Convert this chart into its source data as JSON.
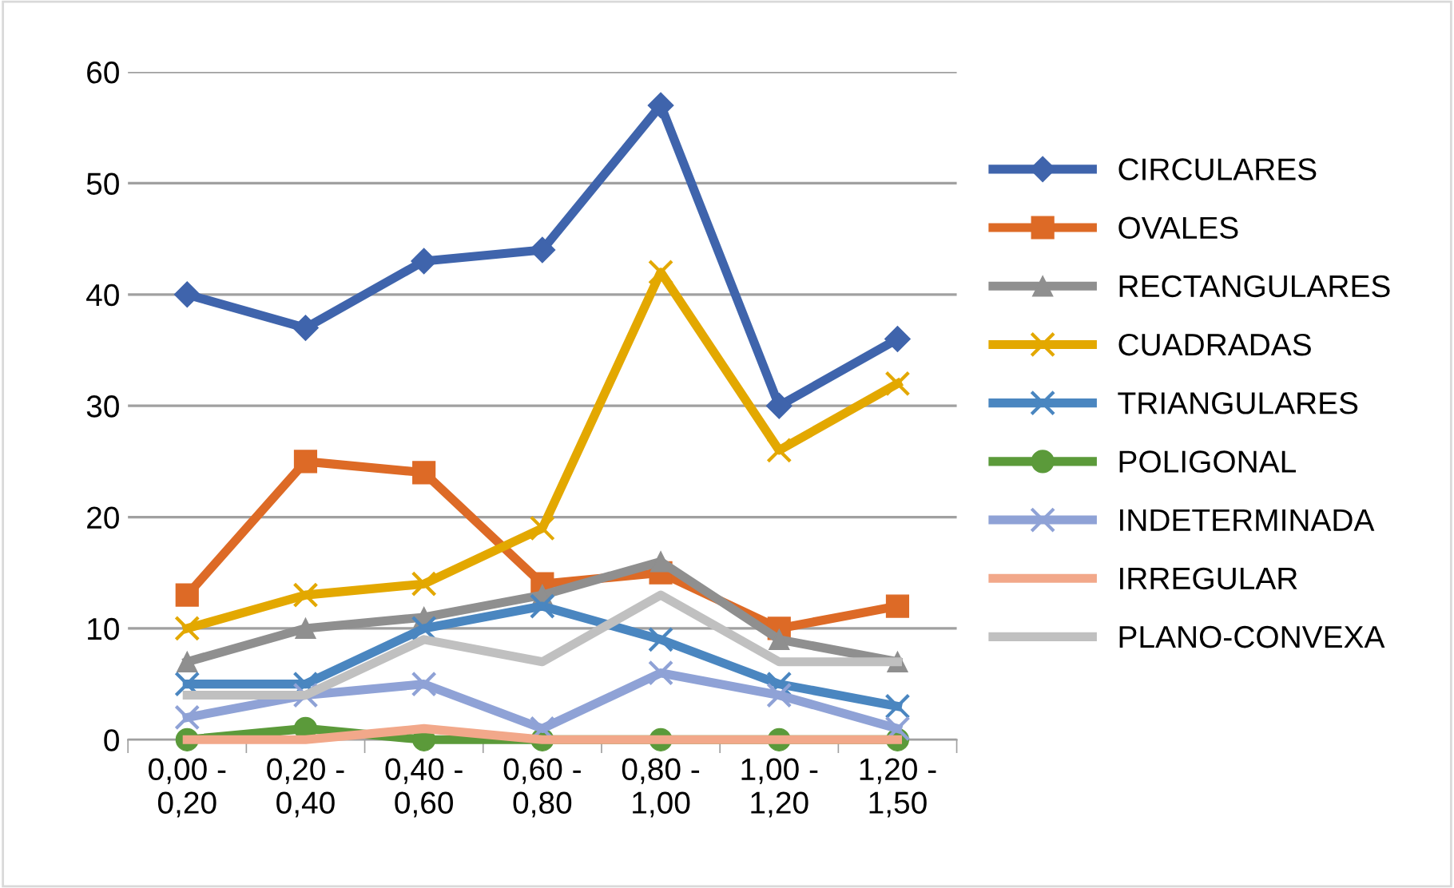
{
  "chart_data": {
    "type": "line",
    "categories": [
      "0,00 -\n0,20",
      "0,20 -\n0,40",
      "0,40 -\n0,60",
      "0,60 -\n0,80",
      "0,80 -\n1,00",
      "1,00 -\n1,20",
      "1,20 -\n1,50"
    ],
    "series": [
      {
        "name": "CIRCULARES",
        "color": "#3f64ac",
        "marker": "diamond",
        "values": [
          40,
          37,
          43,
          44,
          57,
          30,
          36
        ]
      },
      {
        "name": "OVALES",
        "color": "#dd6a26",
        "marker": "square",
        "values": [
          13,
          25,
          24,
          14,
          15,
          10,
          12
        ]
      },
      {
        "name": "RECTANGULARES",
        "color": "#8f8f8f",
        "marker": "triangle",
        "values": [
          7,
          10,
          11,
          13,
          16,
          9,
          7
        ]
      },
      {
        "name": "CUADRADAS",
        "color": "#e3a800",
        "marker": "cross",
        "values": [
          10,
          13,
          14,
          19,
          42,
          26,
          32
        ]
      },
      {
        "name": "TRIANGULARES",
        "color": "#4a86c0",
        "marker": "cross",
        "values": [
          5,
          5,
          10,
          12,
          9,
          5,
          3
        ]
      },
      {
        "name": "POLIGONAL",
        "color": "#5b9a3a",
        "marker": "circle",
        "values": [
          0,
          1,
          0,
          0,
          0,
          0,
          0
        ]
      },
      {
        "name": "INDETERMINADA",
        "color": "#8fa2d6",
        "marker": "cross",
        "values": [
          2,
          4,
          5,
          1,
          6,
          4,
          1
        ]
      },
      {
        "name": "IRREGULAR",
        "color": "#f2a88a",
        "marker": "none",
        "values": [
          0,
          0,
          1,
          0,
          0,
          0,
          0
        ]
      },
      {
        "name": "PLANO-CONVEXA",
        "color": "#c0c0c0",
        "marker": "none",
        "values": [
          4,
          4,
          9,
          7,
          13,
          7,
          7
        ]
      }
    ],
    "ylim": [
      0,
      60
    ],
    "yticks": [
      0,
      10,
      20,
      30,
      40,
      50,
      60
    ],
    "grid": "y",
    "legend": "right",
    "line_style": "solid"
  }
}
